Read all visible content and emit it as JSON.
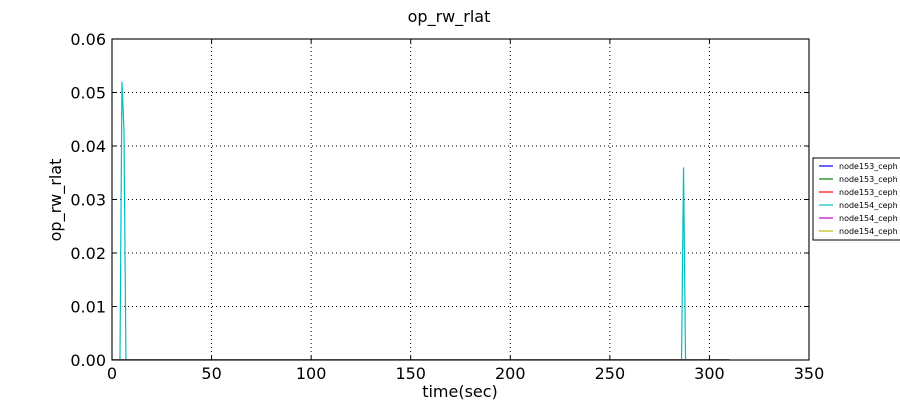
{
  "chart_data": {
    "type": "line",
    "title": "op_rw_rlat",
    "xlabel": "time(sec)",
    "ylabel": "op_rw_rlat",
    "xlim": [
      0,
      350
    ],
    "ylim": [
      0,
      0.06
    ],
    "x_ticks": [
      0,
      50,
      100,
      150,
      200,
      250,
      300,
      350
    ],
    "y_ticks": [
      0.0,
      0.01,
      0.02,
      0.03,
      0.04,
      0.05,
      0.06
    ],
    "x_tick_labels": [
      "0",
      "50",
      "100",
      "150",
      "200",
      "250",
      "300",
      "350"
    ],
    "y_tick_labels": [
      "0.00",
      "0.01",
      "0.02",
      "0.03",
      "0.04",
      "0.05",
      "0.06"
    ],
    "grid": true,
    "legend_position": "right",
    "series": [
      {
        "name": "node153_ceph",
        "color": "#0000ff",
        "x": [
          0,
          310
        ],
        "y": [
          0,
          0
        ]
      },
      {
        "name": "node153_ceph",
        "color": "#008000",
        "x": [
          0,
          310
        ],
        "y": [
          0,
          0
        ]
      },
      {
        "name": "node153_ceph",
        "color": "#ff0000",
        "x": [
          0,
          310
        ],
        "y": [
          0,
          0
        ]
      },
      {
        "name": "node154_ceph",
        "color": "#00bfbf",
        "x": [
          0,
          4,
          5,
          6,
          7,
          8,
          286,
          287,
          288,
          289,
          310
        ],
        "y": [
          0,
          0,
          0.052,
          0.043,
          0,
          0,
          0,
          0.036,
          0,
          0,
          0
        ]
      },
      {
        "name": "node154_ceph",
        "color": "#bf00bf",
        "x": [
          0,
          310
        ],
        "y": [
          0,
          0
        ]
      },
      {
        "name": "node154_ceph",
        "color": "#bfbf00",
        "x": [
          0,
          310
        ],
        "y": [
          0,
          0
        ]
      }
    ]
  }
}
